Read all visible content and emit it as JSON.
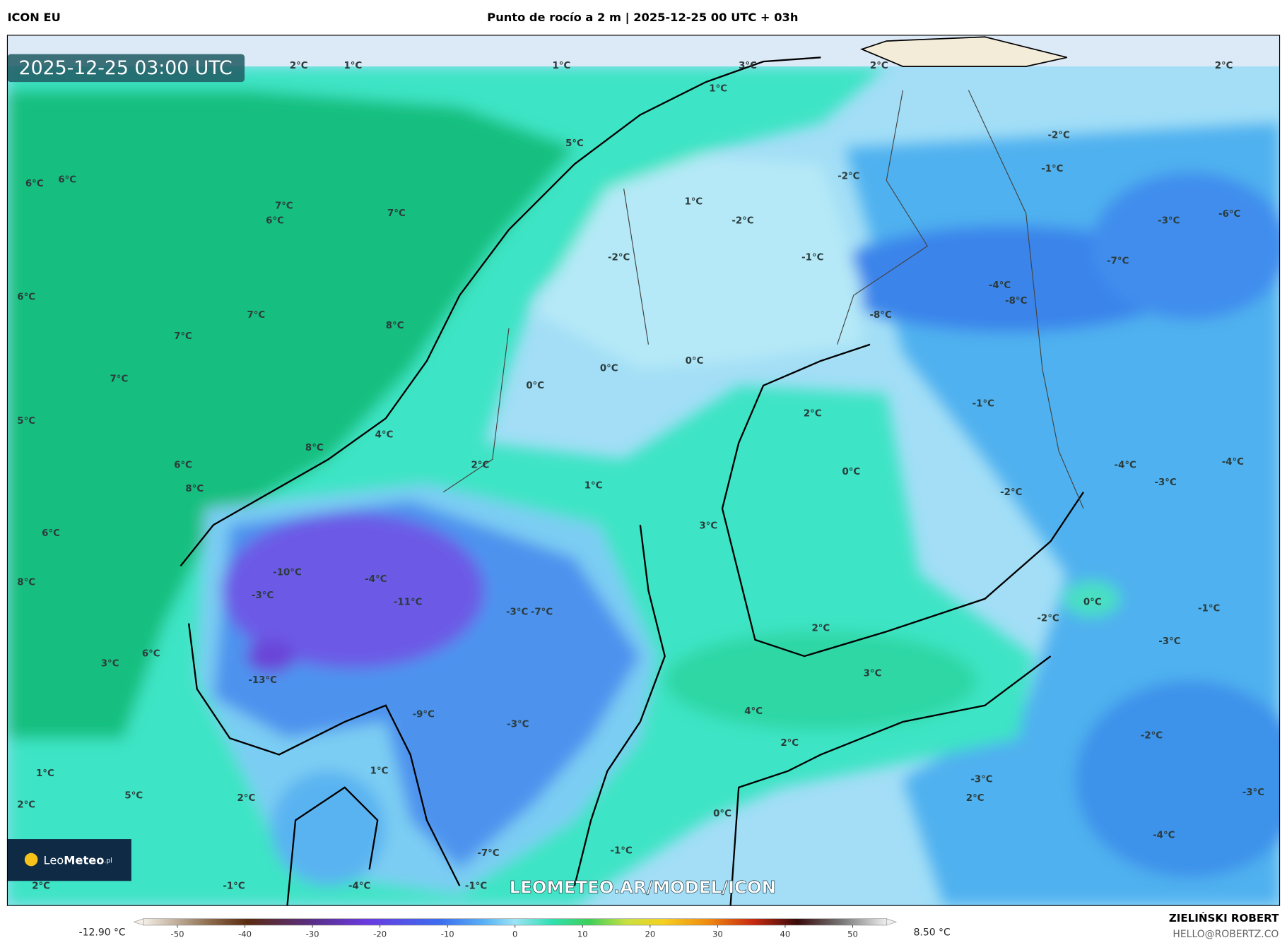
{
  "header": {
    "model": "ICON EU",
    "title": "Punto de rocío a 2 m | 2025-12-25 00 UTC + 03h"
  },
  "map": {
    "timestamp": "2025-12-25 03:00 UTC",
    "watermark": "LEOMETEO.AR/MODEL/ICON",
    "logo": {
      "leo": "Leo",
      "meteo": "Meteo",
      "suffix": ".pl"
    },
    "labels": [
      "2°C",
      "1°C",
      "1°C",
      "3°C",
      "2°C",
      "2°C",
      "1°C",
      "5°C",
      "-2°C",
      "-2°C",
      "-1°C",
      "6°C",
      "6°C",
      "1°C",
      "7°C",
      "6°C",
      "7°C",
      "-2°C",
      "-3°C",
      "-6°C",
      "-2°C",
      "-1°C",
      "-7°C",
      "6°C",
      "-4°C",
      "-8°C",
      "7°C",
      "-8°C",
      "8°C",
      "7°C",
      "0°C",
      "0°C",
      "7°C",
      "0°C",
      "-1°C",
      "2°C",
      "5°C",
      "4°C",
      "8°C",
      "6°C",
      "2°C",
      "-4°C",
      "-4°C",
      "0°C",
      "8°C",
      "1°C",
      "-3°C",
      "-2°C",
      "3°C",
      "6°C",
      "-10°C",
      "-4°C",
      "8°C",
      "-3°C",
      "-11°C",
      "0°C",
      "-3°C",
      "-7°C",
      "-1°C",
      "-2°C",
      "2°C",
      "-3°C",
      "6°C",
      "3°C",
      "3°C",
      "-13°C",
      "4°C",
      "-9°C",
      "-3°C",
      "-2°C",
      "2°C",
      "1°C",
      "1°C",
      "-3°C",
      "5°C",
      "2°C",
      "2°C",
      "-3°C",
      "2°C",
      "0°C",
      "-4°C",
      "-1°C",
      "-7°C",
      "2°C",
      "-1°C",
      "-4°C",
      "-1°C"
    ]
  },
  "colorbar": {
    "min_label": "-12.90 °C",
    "max_label": "8.50 °C",
    "range": [
      -55,
      55
    ],
    "ticks": [
      -50,
      -40,
      -30,
      -20,
      -10,
      0,
      10,
      20,
      30,
      40,
      50
    ]
  },
  "footer": {
    "author": "ZIELIŃSKI ROBERT",
    "email": "HELLO@ROBERTZ.CO"
  }
}
